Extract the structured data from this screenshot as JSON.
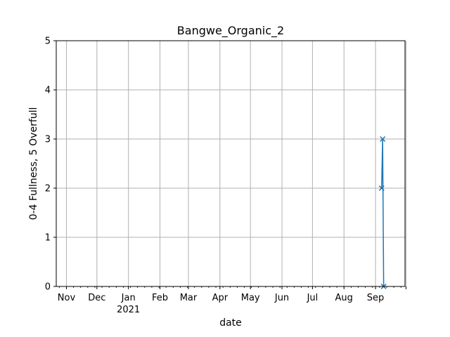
{
  "chart_data": {
    "type": "line",
    "title": "Bangwe_Organic_2",
    "xlabel": "date",
    "ylabel": "0-4 Fullness, 5 Overfull",
    "xlim": [
      "2020-10-22",
      "2021-09-30"
    ],
    "ylim": [
      0,
      5
    ],
    "yticks": [
      0,
      1,
      2,
      3,
      4,
      5
    ],
    "xticks": [
      {
        "date": "2020-11-01",
        "label": "Nov",
        "sublabel": ""
      },
      {
        "date": "2020-12-01",
        "label": "Dec",
        "sublabel": ""
      },
      {
        "date": "2021-01-01",
        "label": "Jan",
        "sublabel": "2021"
      },
      {
        "date": "2021-02-01",
        "label": "Feb",
        "sublabel": ""
      },
      {
        "date": "2021-03-01",
        "label": "Mar",
        "sublabel": ""
      },
      {
        "date": "2021-04-01",
        "label": "Apr",
        "sublabel": ""
      },
      {
        "date": "2021-05-01",
        "label": "May",
        "sublabel": ""
      },
      {
        "date": "2021-06-01",
        "label": "Jun",
        "sublabel": ""
      },
      {
        "date": "2021-07-01",
        "label": "Jul",
        "sublabel": ""
      },
      {
        "date": "2021-08-01",
        "label": "Aug",
        "sublabel": ""
      },
      {
        "date": "2021-09-01",
        "label": "Sep",
        "sublabel": ""
      },
      {
        "date": "2021-10-01",
        "label": "",
        "sublabel": ""
      }
    ],
    "grid": true,
    "series": [
      {
        "color": "#1f77b4",
        "marker": "x",
        "points": [
          {
            "x": "2021-09-07",
            "y": 2
          },
          {
            "x": "2021-09-08",
            "y": 3
          },
          {
            "x": "2021-09-09",
            "y": 0
          }
        ]
      }
    ]
  }
}
